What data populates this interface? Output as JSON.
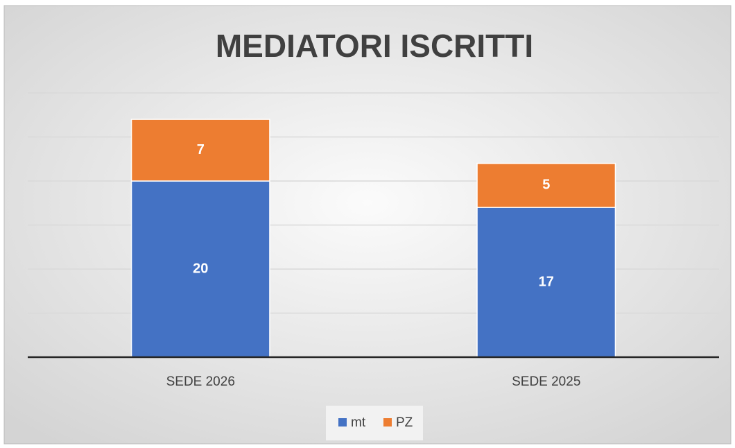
{
  "chart_data": {
    "type": "bar",
    "stacked": true,
    "title": "MEDIATORI ISCRITTI",
    "categories": [
      "SEDE 2026",
      "SEDE 2025"
    ],
    "series": [
      {
        "name": "mt",
        "color": "#4472c4",
        "values": [
          20,
          17
        ]
      },
      {
        "name": "PZ",
        "color": "#ed7d31",
        "values": [
          7,
          5
        ]
      }
    ],
    "ylim": [
      0,
      30
    ],
    "yticks": [
      0,
      5,
      10,
      15,
      20,
      25,
      30
    ],
    "grid": true,
    "legend": "bottom"
  }
}
